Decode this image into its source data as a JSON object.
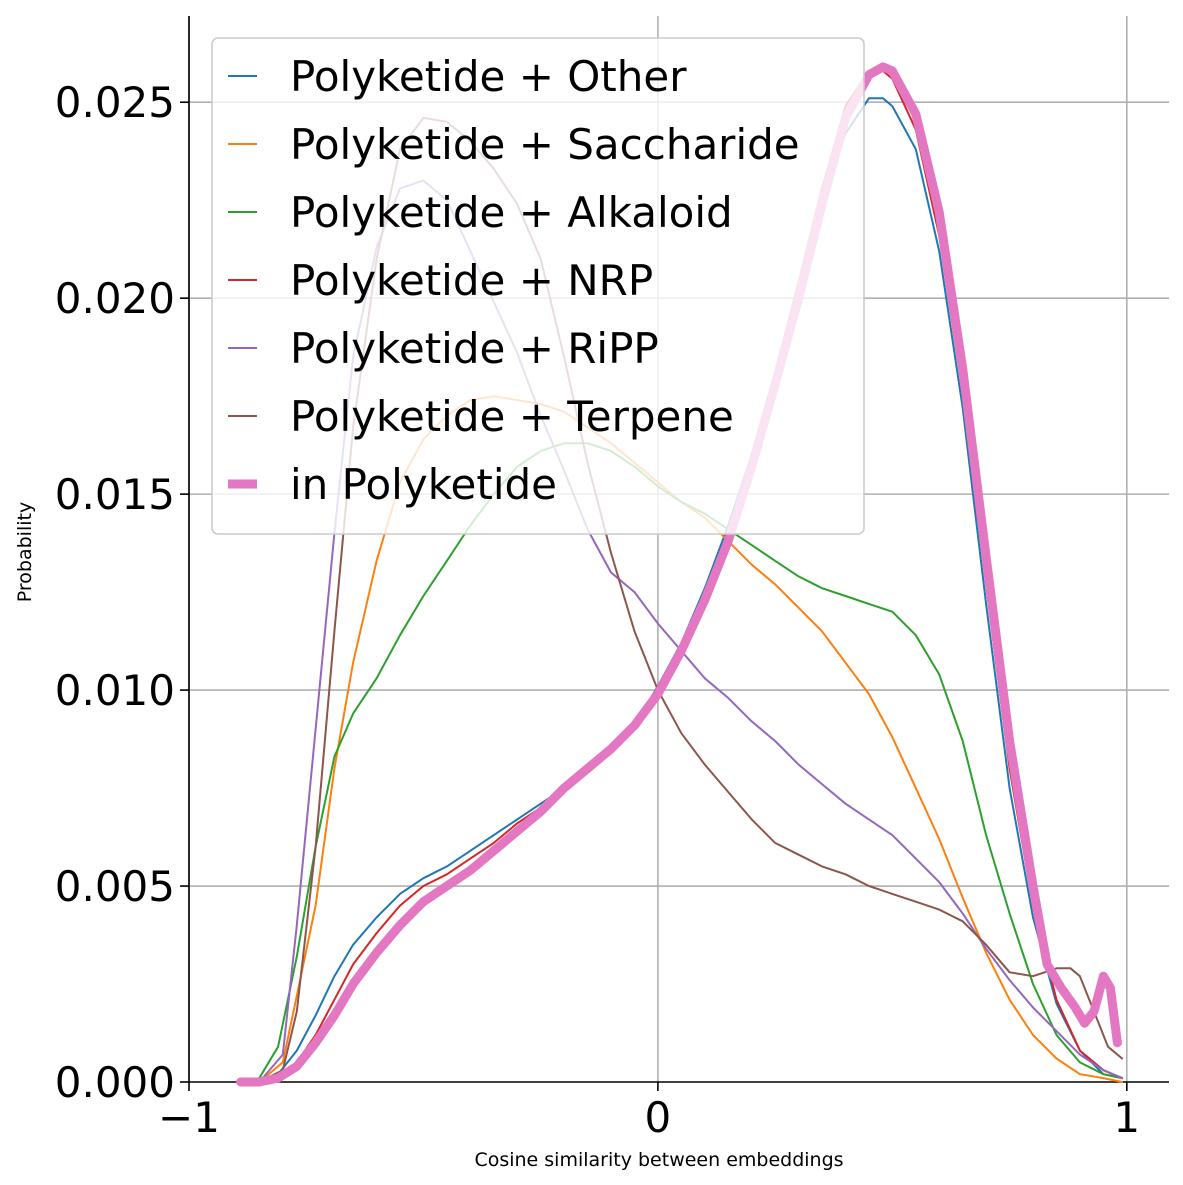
{
  "chart_data": {
    "type": "line",
    "xlabel": "Cosine similarity between embeddings",
    "ylabel": "Probability",
    "xlim": [
      -1,
      1.09
    ],
    "ylim": [
      0,
      0.0272
    ],
    "xticks": [
      -1,
      0,
      1
    ],
    "xtick_labels": [
      "−1",
      "0",
      "1"
    ],
    "yticks": [
      0,
      0.005,
      0.01,
      0.015,
      0.02,
      0.025
    ],
    "ytick_labels": [
      "0.000",
      "0.005",
      "0.010",
      "0.015",
      "0.020",
      "0.025"
    ],
    "grid": true,
    "legend_position": "upper-left",
    "series": [
      {
        "name": "Polyketide + Other",
        "color": "#1f77b4",
        "width": 2,
        "points": [
          [
            -0.89,
            0
          ],
          [
            -0.85,
            0
          ],
          [
            -0.81,
            0.0002
          ],
          [
            -0.77,
            0.0008
          ],
          [
            -0.73,
            0.0017
          ],
          [
            -0.69,
            0.0027
          ],
          [
            -0.65,
            0.0035
          ],
          [
            -0.6,
            0.0042
          ],
          [
            -0.55,
            0.0048
          ],
          [
            -0.5,
            0.0052
          ],
          [
            -0.45,
            0.0055
          ],
          [
            -0.4,
            0.0059
          ],
          [
            -0.35,
            0.0063
          ],
          [
            -0.3,
            0.0067
          ],
          [
            -0.25,
            0.0071
          ],
          [
            -0.2,
            0.0075
          ],
          [
            -0.15,
            0.0079
          ],
          [
            -0.1,
            0.0084
          ],
          [
            -0.05,
            0.0091
          ],
          [
            0,
            0.0101
          ],
          [
            0.05,
            0.0112
          ],
          [
            0.1,
            0.0126
          ],
          [
            0.15,
            0.0142
          ],
          [
            0.2,
            0.016
          ],
          [
            0.25,
            0.0181
          ],
          [
            0.3,
            0.0203
          ],
          [
            0.35,
            0.0224
          ],
          [
            0.4,
            0.0242
          ],
          [
            0.45,
            0.0251
          ],
          [
            0.48,
            0.0251
          ],
          [
            0.5,
            0.0249
          ],
          [
            0.55,
            0.0238
          ],
          [
            0.6,
            0.0212
          ],
          [
            0.65,
            0.0172
          ],
          [
            0.7,
            0.0122
          ],
          [
            0.75,
            0.0075
          ],
          [
            0.8,
            0.0042
          ],
          [
            0.85,
            0.002
          ],
          [
            0.9,
            0.0008
          ],
          [
            0.95,
            0.0002
          ],
          [
            0.99,
            0.0001
          ]
        ]
      },
      {
        "name": "Polyketide + Saccharide",
        "color": "#ff7f0e",
        "width": 2,
        "points": [
          [
            -0.89,
            0
          ],
          [
            -0.85,
            0
          ],
          [
            -0.8,
            0.0005
          ],
          [
            -0.77,
            0.0022
          ],
          [
            -0.73,
            0.0045
          ],
          [
            -0.69,
            0.008
          ],
          [
            -0.65,
            0.0107
          ],
          [
            -0.6,
            0.0133
          ],
          [
            -0.55,
            0.0153
          ],
          [
            -0.5,
            0.0164
          ],
          [
            -0.45,
            0.017
          ],
          [
            -0.4,
            0.0174
          ],
          [
            -0.35,
            0.0175
          ],
          [
            -0.3,
            0.0174
          ],
          [
            -0.25,
            0.0173
          ],
          [
            -0.2,
            0.0171
          ],
          [
            -0.15,
            0.0167
          ],
          [
            -0.1,
            0.0163
          ],
          [
            -0.05,
            0.0158
          ],
          [
            0,
            0.0153
          ],
          [
            0.05,
            0.0148
          ],
          [
            0.1,
            0.0144
          ],
          [
            0.15,
            0.0138
          ],
          [
            0.2,
            0.0132
          ],
          [
            0.25,
            0.0127
          ],
          [
            0.3,
            0.0121
          ],
          [
            0.35,
            0.0115
          ],
          [
            0.4,
            0.0107
          ],
          [
            0.45,
            0.0099
          ],
          [
            0.5,
            0.0088
          ],
          [
            0.55,
            0.0075
          ],
          [
            0.6,
            0.0062
          ],
          [
            0.65,
            0.0047
          ],
          [
            0.7,
            0.0033
          ],
          [
            0.75,
            0.0021
          ],
          [
            0.8,
            0.0012
          ],
          [
            0.85,
            0.0006
          ],
          [
            0.9,
            0.0002
          ],
          [
            0.95,
            0.0001
          ],
          [
            0.99,
            0
          ]
        ]
      },
      {
        "name": "Polyketide + Alkaloid",
        "color": "#2ca02c",
        "width": 2,
        "points": [
          [
            -0.89,
            0
          ],
          [
            -0.85,
            0.0001
          ],
          [
            -0.81,
            0.0009
          ],
          [
            -0.77,
            0.0032
          ],
          [
            -0.73,
            0.006
          ],
          [
            -0.69,
            0.0083
          ],
          [
            -0.65,
            0.0094
          ],
          [
            -0.6,
            0.0103
          ],
          [
            -0.55,
            0.0114
          ],
          [
            -0.5,
            0.0124
          ],
          [
            -0.45,
            0.0133
          ],
          [
            -0.4,
            0.0142
          ],
          [
            -0.35,
            0.015
          ],
          [
            -0.3,
            0.0157
          ],
          [
            -0.25,
            0.0161
          ],
          [
            -0.2,
            0.0163
          ],
          [
            -0.15,
            0.0163
          ],
          [
            -0.1,
            0.0161
          ],
          [
            -0.05,
            0.0157
          ],
          [
            0,
            0.0152
          ],
          [
            0.05,
            0.0148
          ],
          [
            0.1,
            0.0145
          ],
          [
            0.15,
            0.0141
          ],
          [
            0.2,
            0.0137
          ],
          [
            0.25,
            0.0133
          ],
          [
            0.3,
            0.0129
          ],
          [
            0.35,
            0.0126
          ],
          [
            0.4,
            0.0124
          ],
          [
            0.45,
            0.0122
          ],
          [
            0.5,
            0.012
          ],
          [
            0.55,
            0.0114
          ],
          [
            0.6,
            0.0104
          ],
          [
            0.65,
            0.0087
          ],
          [
            0.7,
            0.0063
          ],
          [
            0.75,
            0.0043
          ],
          [
            0.8,
            0.0025
          ],
          [
            0.85,
            0.0012
          ],
          [
            0.9,
            0.0005
          ],
          [
            0.95,
            0.0002
          ],
          [
            0.99,
            0.0001
          ]
        ]
      },
      {
        "name": "Polyketide + NRP",
        "color": "#d62728",
        "width": 2,
        "points": [
          [
            -0.89,
            0
          ],
          [
            -0.85,
            0
          ],
          [
            -0.81,
            0.0001
          ],
          [
            -0.77,
            0.0005
          ],
          [
            -0.73,
            0.0012
          ],
          [
            -0.69,
            0.0021
          ],
          [
            -0.65,
            0.003
          ],
          [
            -0.6,
            0.0038
          ],
          [
            -0.55,
            0.0045
          ],
          [
            -0.5,
            0.005
          ],
          [
            -0.45,
            0.0053
          ],
          [
            -0.4,
            0.0057
          ],
          [
            -0.35,
            0.0061
          ],
          [
            -0.3,
            0.0066
          ],
          [
            -0.25,
            0.007
          ],
          [
            -0.2,
            0.0075
          ],
          [
            -0.15,
            0.0079
          ],
          [
            -0.1,
            0.0084
          ],
          [
            -0.05,
            0.009
          ],
          [
            0,
            0.0099
          ],
          [
            0.05,
            0.011
          ],
          [
            0.1,
            0.0124
          ],
          [
            0.15,
            0.014
          ],
          [
            0.2,
            0.0159
          ],
          [
            0.25,
            0.0181
          ],
          [
            0.3,
            0.0204
          ],
          [
            0.35,
            0.0228
          ],
          [
            0.4,
            0.0249
          ],
          [
            0.45,
            0.0258
          ],
          [
            0.48,
            0.0258
          ],
          [
            0.5,
            0.0256
          ],
          [
            0.55,
            0.0243
          ],
          [
            0.6,
            0.0216
          ],
          [
            0.65,
            0.0176
          ],
          [
            0.7,
            0.0127
          ],
          [
            0.75,
            0.008
          ],
          [
            0.8,
            0.0045
          ],
          [
            0.85,
            0.0021
          ],
          [
            0.9,
            0.0008
          ],
          [
            0.95,
            0.0003
          ],
          [
            0.99,
            0.0001
          ]
        ]
      },
      {
        "name": "Polyketide + RiPP",
        "color": "#9467bd",
        "width": 2,
        "points": [
          [
            -0.89,
            0
          ],
          [
            -0.85,
            0
          ],
          [
            -0.8,
            0.0007
          ],
          [
            -0.77,
            0.004
          ],
          [
            -0.73,
            0.009
          ],
          [
            -0.69,
            0.014
          ],
          [
            -0.65,
            0.0185
          ],
          [
            -0.6,
            0.0213
          ],
          [
            -0.55,
            0.0228
          ],
          [
            -0.5,
            0.023
          ],
          [
            -0.45,
            0.0225
          ],
          [
            -0.4,
            0.0212
          ],
          [
            -0.35,
            0.0199
          ],
          [
            -0.3,
            0.0186
          ],
          [
            -0.25,
            0.017
          ],
          [
            -0.2,
            0.0156
          ],
          [
            -0.15,
            0.0141
          ],
          [
            -0.1,
            0.013
          ],
          [
            -0.05,
            0.0125
          ],
          [
            0,
            0.0117
          ],
          [
            0.05,
            0.011
          ],
          [
            0.1,
            0.0103
          ],
          [
            0.15,
            0.0098
          ],
          [
            0.2,
            0.0092
          ],
          [
            0.25,
            0.0087
          ],
          [
            0.3,
            0.0081
          ],
          [
            0.35,
            0.0076
          ],
          [
            0.4,
            0.0071
          ],
          [
            0.45,
            0.0067
          ],
          [
            0.5,
            0.0063
          ],
          [
            0.55,
            0.0057
          ],
          [
            0.6,
            0.0051
          ],
          [
            0.65,
            0.0043
          ],
          [
            0.7,
            0.0034
          ],
          [
            0.75,
            0.0026
          ],
          [
            0.8,
            0.0019
          ],
          [
            0.85,
            0.0013
          ],
          [
            0.9,
            0.0007
          ],
          [
            0.95,
            0.0003
          ],
          [
            0.99,
            0.0001
          ]
        ]
      },
      {
        "name": "Polyketide + Terpene",
        "color": "#8c564b",
        "width": 2,
        "points": [
          [
            -0.89,
            0
          ],
          [
            -0.85,
            0
          ],
          [
            -0.8,
            0.0003
          ],
          [
            -0.77,
            0.0018
          ],
          [
            -0.73,
            0.006
          ],
          [
            -0.69,
            0.0115
          ],
          [
            -0.65,
            0.0167
          ],
          [
            -0.6,
            0.021
          ],
          [
            -0.55,
            0.0238
          ],
          [
            -0.5,
            0.0246
          ],
          [
            -0.45,
            0.0245
          ],
          [
            -0.4,
            0.024
          ],
          [
            -0.35,
            0.0233
          ],
          [
            -0.3,
            0.0224
          ],
          [
            -0.25,
            0.021
          ],
          [
            -0.2,
            0.0185
          ],
          [
            -0.15,
            0.0158
          ],
          [
            -0.1,
            0.0135
          ],
          [
            -0.05,
            0.0115
          ],
          [
            0,
            0.01
          ],
          [
            0.05,
            0.0089
          ],
          [
            0.1,
            0.0081
          ],
          [
            0.15,
            0.0074
          ],
          [
            0.2,
            0.0067
          ],
          [
            0.25,
            0.0061
          ],
          [
            0.3,
            0.0058
          ],
          [
            0.35,
            0.0055
          ],
          [
            0.4,
            0.0053
          ],
          [
            0.45,
            0.005
          ],
          [
            0.5,
            0.0048
          ],
          [
            0.55,
            0.0046
          ],
          [
            0.6,
            0.0044
          ],
          [
            0.65,
            0.0041
          ],
          [
            0.7,
            0.0035
          ],
          [
            0.75,
            0.0028
          ],
          [
            0.8,
            0.0027
          ],
          [
            0.85,
            0.0029
          ],
          [
            0.88,
            0.0029
          ],
          [
            0.9,
            0.0027
          ],
          [
            0.93,
            0.0018
          ],
          [
            0.96,
            0.0009
          ],
          [
            0.99,
            0.0006
          ]
        ]
      },
      {
        "name": "in Polyketide",
        "color": "#e377c2",
        "width": 9,
        "points": [
          [
            -0.89,
            0
          ],
          [
            -0.85,
            0
          ],
          [
            -0.81,
            0.0001
          ],
          [
            -0.77,
            0.0004
          ],
          [
            -0.73,
            0.001
          ],
          [
            -0.69,
            0.0017
          ],
          [
            -0.65,
            0.0025
          ],
          [
            -0.6,
            0.0033
          ],
          [
            -0.55,
            0.004
          ],
          [
            -0.5,
            0.0046
          ],
          [
            -0.45,
            0.005
          ],
          [
            -0.4,
            0.0054
          ],
          [
            -0.35,
            0.0059
          ],
          [
            -0.3,
            0.0064
          ],
          [
            -0.25,
            0.0069
          ],
          [
            -0.2,
            0.0075
          ],
          [
            -0.15,
            0.008
          ],
          [
            -0.1,
            0.0085
          ],
          [
            -0.05,
            0.0091
          ],
          [
            0,
            0.0099
          ],
          [
            0.05,
            0.011
          ],
          [
            0.1,
            0.0123
          ],
          [
            0.15,
            0.0138
          ],
          [
            0.2,
            0.0157
          ],
          [
            0.25,
            0.0178
          ],
          [
            0.3,
            0.02
          ],
          [
            0.35,
            0.0224
          ],
          [
            0.4,
            0.0246
          ],
          [
            0.45,
            0.0257
          ],
          [
            0.48,
            0.0259
          ],
          [
            0.5,
            0.0258
          ],
          [
            0.55,
            0.0247
          ],
          [
            0.6,
            0.0222
          ],
          [
            0.65,
            0.0182
          ],
          [
            0.7,
            0.0134
          ],
          [
            0.75,
            0.0087
          ],
          [
            0.8,
            0.005
          ],
          [
            0.83,
            0.003
          ],
          [
            0.86,
            0.0024
          ],
          [
            0.89,
            0.0019
          ],
          [
            0.91,
            0.0015
          ],
          [
            0.93,
            0.0018
          ],
          [
            0.95,
            0.0027
          ],
          [
            0.965,
            0.0024
          ],
          [
            0.98,
            0.001
          ]
        ]
      }
    ]
  }
}
